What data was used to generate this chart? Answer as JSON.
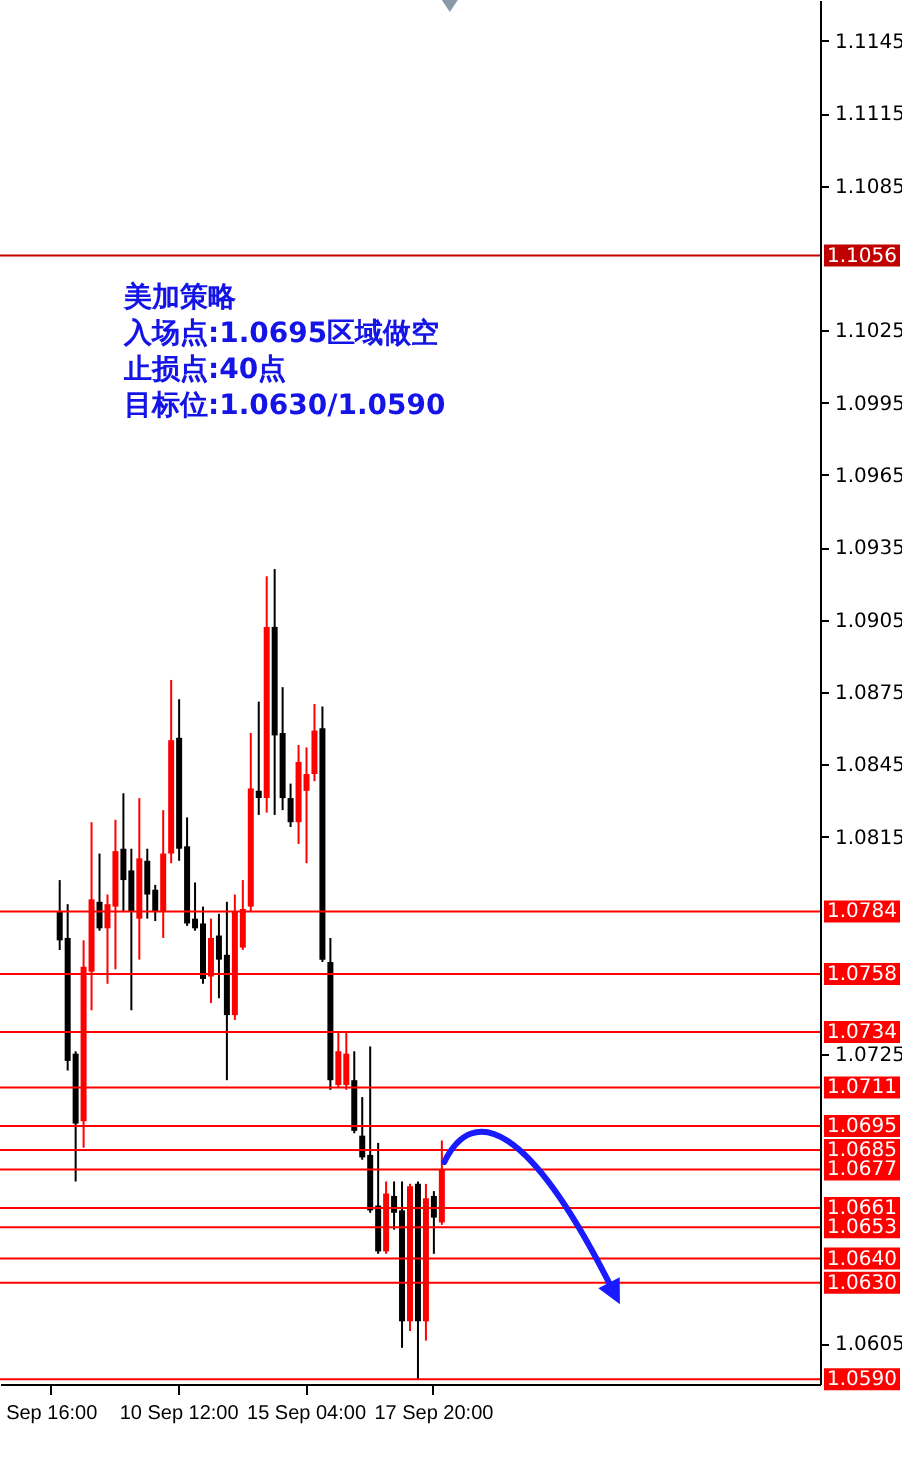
{
  "chart_data": {
    "type": "candlestick",
    "categories": [
      null,
      null,
      null,
      null,
      null,
      null,
      "Sep 16:00",
      null,
      null,
      null,
      null,
      null,
      null,
      null,
      null,
      null,
      null,
      null,
      null,
      null,
      null,
      null,
      "10 Sep 12:00",
      null,
      null,
      null,
      null,
      null,
      null,
      null,
      null,
      null,
      null,
      null,
      null,
      null,
      null,
      null,
      "15 Sep 04:00",
      null,
      null,
      null,
      null,
      null,
      null,
      null,
      null,
      null,
      null,
      null,
      null,
      null,
      null,
      null,
      "17 Sep 20:00",
      null,
      null,
      null,
      null,
      null,
      null,
      null,
      null,
      null,
      null,
      null,
      null,
      null,
      null,
      null,
      null,
      null,
      null,
      null,
      null,
      null,
      null,
      null,
      null,
      null,
      null,
      null,
      null,
      null,
      null,
      null,
      null,
      null,
      null,
      null,
      null,
      null,
      null,
      null,
      null,
      null,
      null,
      null,
      null,
      null,
      null,
      null,
      null
    ],
    "ohlc": [
      null,
      null,
      null,
      null,
      null,
      null,
      null,
      [
        1.0784,
        1.0797,
        1.0768,
        1.0772
      ],
      [
        1.0773,
        1.0787,
        1.0718,
        1.0722
      ],
      [
        1.0725,
        1.0726,
        1.0672,
        1.0696
      ],
      [
        1.0697,
        1.0772,
        1.0686,
        1.0761
      ],
      [
        1.0759,
        1.0821,
        1.0743,
        1.0789
      ],
      [
        1.0788,
        1.0808,
        1.0776,
        1.0777
      ],
      [
        1.0777,
        1.0791,
        1.0754,
        1.0787
      ],
      [
        1.0786,
        1.0822,
        1.076,
        1.0809
      ],
      [
        1.081,
        1.0833,
        1.0784,
        1.0797
      ],
      [
        1.0801,
        1.081,
        1.0743,
        1.0784
      ],
      [
        1.0781,
        1.0831,
        1.0764,
        1.0806
      ],
      [
        1.0805,
        1.081,
        1.0781,
        1.0791
      ],
      [
        1.0793,
        1.0795,
        1.078,
        1.0784
      ],
      [
        1.0784,
        1.0826,
        1.0773,
        1.0808
      ],
      [
        1.0808,
        1.088,
        1.0804,
        1.0855
      ],
      [
        1.0856,
        1.0872,
        1.0805,
        1.081
      ],
      [
        1.0811,
        1.0823,
        1.0778,
        1.0779
      ],
      [
        1.0781,
        1.0796,
        1.0776,
        1.0777
      ],
      [
        1.0779,
        1.0786,
        1.0754,
        1.0756
      ],
      [
        1.0757,
        1.0781,
        1.0746,
        1.0773
      ],
      [
        1.0774,
        1.0783,
        1.0748,
        1.0764
      ],
      [
        1.0766,
        1.0788,
        1.0714,
        1.0741
      ],
      [
        1.0741,
        1.0791,
        1.0739,
        1.0784
      ],
      [
        1.0769,
        1.0797,
        1.0768,
        1.0785
      ],
      [
        1.0786,
        1.0858,
        1.0784,
        1.0835
      ],
      [
        1.0834,
        1.0871,
        1.0824,
        1.0831
      ],
      [
        1.0831,
        1.0923,
        1.0825,
        1.0902
      ],
      [
        1.0902,
        1.0926,
        1.0824,
        1.0857
      ],
      [
        1.0858,
        1.0877,
        1.0826,
        1.0831
      ],
      [
        1.0831,
        1.0837,
        1.0819,
        1.0821
      ],
      [
        1.0821,
        1.0853,
        1.0812,
        1.0846
      ],
      [
        1.0834,
        1.0852,
        1.0804,
        1.0841
      ],
      [
        1.0841,
        1.087,
        1.0838,
        1.0859
      ],
      [
        1.086,
        1.0869,
        1.0763,
        1.0764
      ],
      [
        1.0763,
        1.0773,
        1.071,
        1.0714
      ],
      [
        1.0712,
        1.0734,
        1.0711,
        1.0726
      ],
      [
        1.0712,
        1.0734,
        1.071,
        1.0725
      ],
      [
        1.0714,
        1.0726,
        1.0692,
        1.0693
      ],
      [
        1.0691,
        1.0707,
        1.0681,
        1.0682
      ],
      [
        1.0683,
        1.0728,
        1.0659,
        1.066
      ],
      [
        1.0662,
        1.0688,
        1.0642,
        1.0643
      ],
      [
        1.0643,
        1.0672,
        1.0642,
        1.0667
      ],
      [
        1.0666,
        1.0672,
        1.0652,
        1.0659
      ],
      [
        1.066,
        1.0672,
        1.0603,
        1.0614
      ],
      [
        1.0614,
        1.0671,
        1.061,
        1.067
      ],
      [
        1.0671,
        1.0672,
        1.059,
        1.0614
      ],
      [
        1.0614,
        1.0671,
        1.0606,
        1.0665
      ],
      [
        1.0666,
        1.0668,
        1.0642,
        1.0657
      ],
      [
        1.0655,
        1.0689,
        1.0654,
        1.0677
      ],
      null,
      null,
      null,
      null,
      null,
      null,
      null,
      null,
      null,
      null,
      null,
      null,
      null,
      null,
      null,
      null,
      null,
      null,
      null,
      null,
      null,
      null,
      null,
      null,
      null,
      null,
      null,
      null,
      null,
      null,
      null,
      null,
      null,
      null,
      null,
      null,
      null,
      null,
      null,
      null,
      null,
      null,
      null,
      null,
      null,
      null,
      null
    ],
    "colors": [
      null,
      null,
      null,
      null,
      null,
      null,
      null,
      "#000000",
      "#000000",
      "#000000",
      "#ff0000",
      "#ff0000",
      "#000000",
      "#ff0000",
      "#ff0000",
      "#000000",
      "#000000",
      "#ff0000",
      "#000000",
      "#000000",
      "#ff0000",
      "#ff0000",
      "#000000",
      "#000000",
      "#000000",
      "#000000",
      "#ff0000",
      "#000000",
      "#000000",
      "#ff0000",
      "#ff0000",
      "#ff0000",
      "#000000",
      "#ff0000",
      "#000000",
      "#000000",
      "#000000",
      "#ff0000",
      "#ff0000",
      "#ff0000",
      "#000000",
      "#000000",
      "#ff0000",
      "#ff0000",
      "#000000",
      "#000000",
      "#000000",
      "#000000",
      "#ff0000",
      "#000000",
      "#000000",
      "#ff0000",
      "#000000",
      "#ff0000",
      "#000000",
      "#ff0000",
      null,
      null,
      null,
      null,
      null,
      null,
      null,
      null,
      null,
      null,
      null,
      null,
      null,
      null,
      null,
      null,
      null,
      null,
      null,
      null,
      null,
      null,
      null,
      null,
      null,
      null,
      null,
      null,
      null,
      null,
      null,
      null,
      null,
      null,
      null,
      null,
      null,
      null,
      null,
      null,
      null,
      null,
      null,
      null,
      null,
      null,
      null
    ],
    "ylim": [
      1.0588,
      1.1162
    ],
    "yticks": [
      1.1145,
      1.1115,
      1.1085,
      1.1025,
      1.0995,
      1.0965,
      1.0935,
      1.0905,
      1.0875,
      1.0845,
      1.0815,
      1.0725,
      1.0605
    ],
    "ref_lines": [
      {
        "axis": "y",
        "value": 1.1056,
        "label": "1.1056",
        "color": "#c00000"
      },
      {
        "axis": "y",
        "value": 1.0784,
        "label": "1.0784",
        "color": "#ff0000"
      },
      {
        "axis": "y",
        "value": 1.0758,
        "label": "1.0758",
        "color": "#ff0000"
      },
      {
        "axis": "y",
        "value": 1.0734,
        "label": "1.0734",
        "color": "#ff0000"
      },
      {
        "axis": "y",
        "value": 1.0711,
        "label": "1.0711",
        "color": "#ff0000"
      },
      {
        "axis": "y",
        "value": 1.0695,
        "label": "1.0695",
        "color": "#ff0000"
      },
      {
        "axis": "y",
        "value": 1.0685,
        "label": "1.0685",
        "color": "#ff0000"
      },
      {
        "axis": "y",
        "value": 1.0677,
        "label": "1.0677",
        "color": "#ff0000"
      },
      {
        "axis": "y",
        "value": 1.0661,
        "label": "1.0661",
        "color": "#ff0000"
      },
      {
        "axis": "y",
        "value": 1.0653,
        "label": "1.0653",
        "color": "#ff0000"
      },
      {
        "axis": "y",
        "value": 1.064,
        "label": "1.0640",
        "color": "#ff0000"
      },
      {
        "axis": "y",
        "value": 1.063,
        "label": "1.0630",
        "color": "#ff0000"
      },
      {
        "axis": "y",
        "value": 1.059,
        "label": "1.0590",
        "color": "#ff0000"
      }
    ],
    "annotations": [
      "美加策略",
      "入场点:1.0695区域做空",
      "止损点:40点",
      "目标位:1.0630/1.0590"
    ]
  }
}
